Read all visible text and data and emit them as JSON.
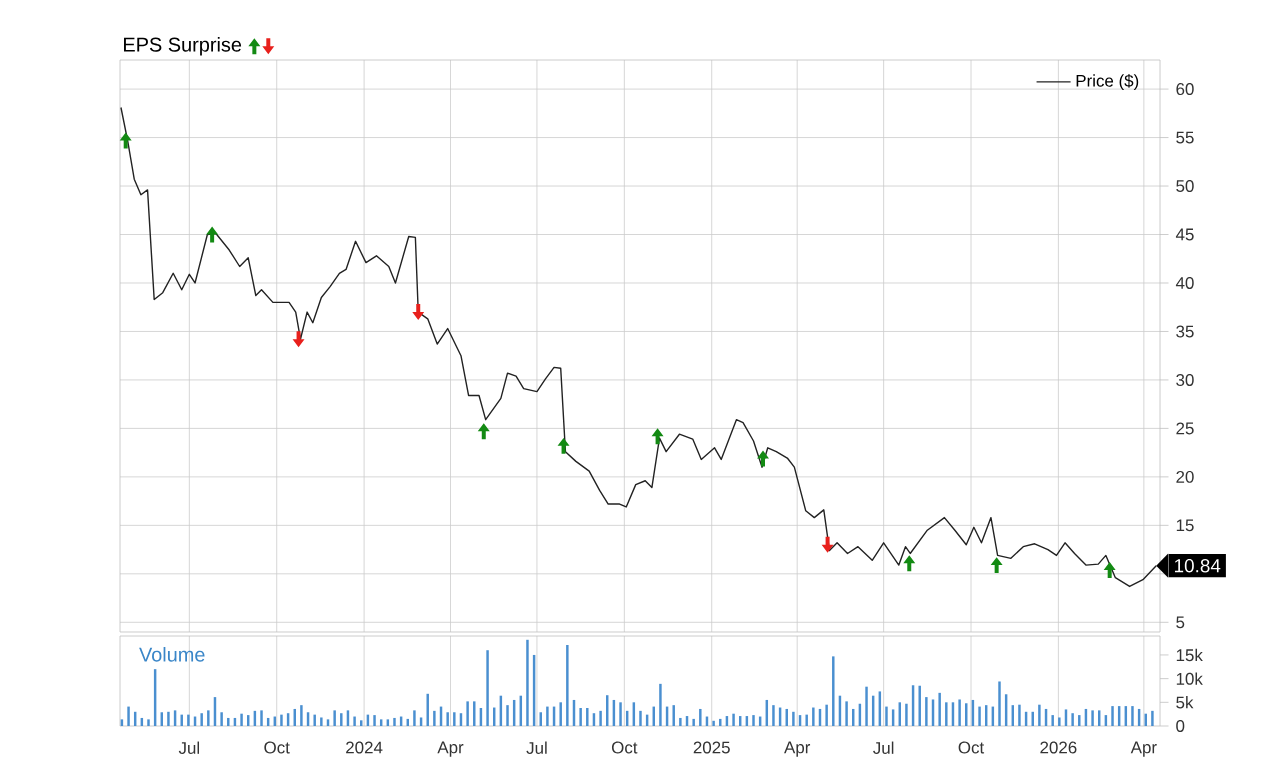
{
  "chart_data": [
    {
      "type": "line",
      "legend_title": "EPS Surprise",
      "legend": "top right",
      "grid": true,
      "tick_labels": "y",
      "xlim": [
        "2023-04-19",
        "2026-04-18"
      ],
      "ylim": [
        4,
        63
      ],
      "xticks": [
        {
          "value": "2023-07-01",
          "label": null
        },
        {
          "value": "2023-10-01",
          "label": null
        },
        {
          "value": "2024-01-01",
          "label": null
        },
        {
          "value": "2024-04-01",
          "label": null
        },
        {
          "value": "2024-07-01",
          "label": null
        },
        {
          "value": "2024-10-01",
          "label": null
        },
        {
          "value": "2025-01-01",
          "label": null
        },
        {
          "value": "2025-04-01",
          "label": null
        },
        {
          "value": "2025-07-01",
          "label": null
        },
        {
          "value": "2025-10-01",
          "label": null
        },
        {
          "value": "2026-01-01",
          "label": null
        },
        {
          "value": "2026-04-01",
          "label": null
        }
      ],
      "yticks": [
        5,
        {
          "value": 10,
          "label": null
        },
        15,
        20,
        25,
        30,
        35,
        40,
        45,
        50,
        55,
        60
      ],
      "x": [
        "2023-04-20",
        "2023-04-27",
        "2023-05-04",
        "2023-05-11",
        "2023-05-18",
        "2023-05-25",
        "2023-06-03",
        "2023-06-14",
        "2023-06-23",
        "2023-07-01",
        "2023-07-07",
        "2023-07-20",
        "2023-07-29",
        "2023-08-12",
        "2023-08-23",
        "2023-09-01",
        "2023-09-09",
        "2023-09-15",
        "2023-09-27",
        "2023-10-14",
        "2023-10-21",
        "2023-10-26",
        "2023-11-02",
        "2023-11-08",
        "2023-11-17",
        "2023-11-26",
        "2023-12-06",
        "2023-12-13",
        "2023-12-23",
        "2024-01-03",
        "2024-01-14",
        "2024-01-27",
        "2024-02-03",
        "2024-02-17",
        "2024-02-24",
        "2024-02-27",
        "2024-03-08",
        "2024-03-18",
        "2024-03-29",
        "2024-04-12",
        "2024-04-20",
        "2024-05-01",
        "2024-05-08",
        "2024-05-24",
        "2024-05-31",
        "2024-06-09",
        "2024-06-17",
        "2024-07-01",
        "2024-07-10",
        "2024-07-19",
        "2024-07-26",
        "2024-07-31",
        "2024-08-11",
        "2024-08-25",
        "2024-09-05",
        "2024-09-14",
        "2024-09-26",
        "2024-10-03",
        "2024-10-13",
        "2024-10-23",
        "2024-10-30",
        "2024-11-07",
        "2024-11-14",
        "2024-11-28",
        "2024-12-12",
        "2024-12-21",
        "2025-01-04",
        "2025-01-11",
        "2025-01-27",
        "2025-02-03",
        "2025-02-14",
        "2025-02-23",
        "2025-03-01",
        "2025-03-10",
        "2025-03-22",
        "2025-03-29",
        "2025-04-10",
        "2025-04-19",
        "2025-04-29",
        "2025-05-05",
        "2025-05-13",
        "2025-05-24",
        "2025-06-04",
        "2025-06-19",
        "2025-07-01",
        "2025-07-17",
        "2025-07-24",
        "2025-07-29",
        "2025-08-16",
        "2025-09-03",
        "2025-09-14",
        "2025-09-26",
        "2025-10-04",
        "2025-10-12",
        "2025-10-22",
        "2025-10-29",
        "2025-11-12",
        "2025-11-25",
        "2025-12-07",
        "2025-12-21",
        "2025-12-30",
        "2026-01-08",
        "2026-01-18",
        "2026-01-30",
        "2026-02-12",
        "2026-02-20",
        "2026-03-02",
        "2026-03-17",
        "2026-03-31",
        "2026-04-14"
      ],
      "series": [
        {
          "name": "Price ($)",
          "color": "#222222",
          "values": [
            58.1,
            54.7,
            50.7,
            49.1,
            49.6,
            38.3,
            39.0,
            41.0,
            39.3,
            40.9,
            40.0,
            45.0,
            45.1,
            43.4,
            41.7,
            42.6,
            38.7,
            39.3,
            38.0,
            38.0,
            37.0,
            34.2,
            37.0,
            35.9,
            38.5,
            39.6,
            41.0,
            41.4,
            44.3,
            42.1,
            42.8,
            41.7,
            40.0,
            44.8,
            44.7,
            37.0,
            36.3,
            33.7,
            35.3,
            32.5,
            28.4,
            28.4,
            25.9,
            28.1,
            30.7,
            30.4,
            29.1,
            28.8,
            30.1,
            31.3,
            31.2,
            22.6,
            21.6,
            20.6,
            18.6,
            17.2,
            17.2,
            16.9,
            19.2,
            19.6,
            18.9,
            24.0,
            22.6,
            24.4,
            23.9,
            21.8,
            23.0,
            21.8,
            25.9,
            25.6,
            23.7,
            21.0,
            23.0,
            22.6,
            21.9,
            21.0,
            16.5,
            15.8,
            16.6,
            12.4,
            13.2,
            12.1,
            12.8,
            11.4,
            13.2,
            10.9,
            12.8,
            12.1,
            14.5,
            15.8,
            14.5,
            13.0,
            14.8,
            13.2,
            15.8,
            11.9,
            11.6,
            12.8,
            13.1,
            12.5,
            11.9,
            13.2,
            12.1,
            10.9,
            11.0,
            11.9,
            9.6,
            8.7,
            9.4,
            10.84
          ]
        },
        {
          "type": "scatter",
          "marker": "triangle",
          "color": "#138a13",
          "x": [
            "2023-04-25",
            "2023-07-25",
            "2024-05-06",
            "2024-07-29",
            "2024-11-05",
            "2025-02-24",
            "2025-07-28",
            "2025-10-28",
            "2026-02-24"
          ],
          "values": [
            54.7,
            45.0,
            24.7,
            23.2,
            24.2,
            21.9,
            11.1,
            10.9,
            10.4
          ]
        },
        {
          "type": "scatter",
          "marker": "triangle",
          "color": "#e8201c",
          "x": [
            "2023-10-24",
            "2024-02-27",
            "2025-05-03"
          ],
          "values": [
            34.2,
            37.0,
            13.0
          ]
        }
      ],
      "annotations": [
        {
          "text": "10.84",
          "x": "2026-04-14",
          "y": 10.84
        }
      ]
    },
    {
      "type": "bar",
      "title": "Volume",
      "grid": "x",
      "color": "#4a8fd0",
      "xlim": [
        "2023-04-19",
        "2026-04-18"
      ],
      "ylim": [
        0,
        19000
      ],
      "xticks": [
        {
          "value": "2023-07-01",
          "label": "Jul"
        },
        {
          "value": "2023-10-01",
          "label": "Oct"
        },
        {
          "value": "2024-01-01",
          "label": "2024"
        },
        {
          "value": "2024-04-01",
          "label": "Apr"
        },
        {
          "value": "2024-07-01",
          "label": "Jul"
        },
        {
          "value": "2024-10-01",
          "label": "Oct"
        },
        {
          "value": "2025-01-01",
          "label": "2025"
        },
        {
          "value": "2025-04-01",
          "label": "Apr"
        },
        {
          "value": "2025-07-01",
          "label": "Jul"
        },
        {
          "value": "2025-10-01",
          "label": "Oct"
        },
        {
          "value": "2026-01-01",
          "label": "2026"
        },
        {
          "value": "2026-04-01",
          "label": "Apr"
        }
      ],
      "yticks": [
        0,
        {
          "value": 5000,
          "label": "5k"
        },
        {
          "value": 10000,
          "label": "10k"
        },
        {
          "value": 15000,
          "label": "15k"
        }
      ],
      "x": [
        "2023-04-21",
        "2023-04-28",
        "2023-05-05",
        "2023-05-12",
        "2023-05-19",
        "2023-05-26",
        "2023-06-02",
        "2023-06-09",
        "2023-06-16",
        "2023-06-23",
        "2023-06-30",
        "2023-07-07",
        "2023-07-14",
        "2023-07-21",
        "2023-07-28",
        "2023-08-04",
        "2023-08-11",
        "2023-08-18",
        "2023-08-25",
        "2023-09-01",
        "2023-09-08",
        "2023-09-15",
        "2023-09-22",
        "2023-09-29",
        "2023-10-06",
        "2023-10-13",
        "2023-10-20",
        "2023-10-27",
        "2023-11-03",
        "2023-11-10",
        "2023-11-17",
        "2023-11-24",
        "2023-12-01",
        "2023-12-08",
        "2023-12-15",
        "2023-12-22",
        "2023-12-29",
        "2024-01-05",
        "2024-01-12",
        "2024-01-19",
        "2024-01-26",
        "2024-02-02",
        "2024-02-09",
        "2024-02-16",
        "2024-02-23",
        "2024-03-01",
        "2024-03-08",
        "2024-03-15",
        "2024-03-22",
        "2024-03-29",
        "2024-04-05",
        "2024-04-12",
        "2024-04-19",
        "2024-04-26",
        "2024-05-03",
        "2024-05-10",
        "2024-05-17",
        "2024-05-24",
        "2024-05-31",
        "2024-06-07",
        "2024-06-14",
        "2024-06-21",
        "2024-06-28",
        "2024-07-05",
        "2024-07-12",
        "2024-07-19",
        "2024-07-26",
        "2024-08-02",
        "2024-08-09",
        "2024-08-16",
        "2024-08-23",
        "2024-08-30",
        "2024-09-06",
        "2024-09-13",
        "2024-09-20",
        "2024-09-27",
        "2024-10-04",
        "2024-10-11",
        "2024-10-18",
        "2024-10-25",
        "2024-11-01",
        "2024-11-08",
        "2024-11-15",
        "2024-11-22",
        "2024-11-29",
        "2024-12-06",
        "2024-12-13",
        "2024-12-20",
        "2024-12-27",
        "2025-01-03",
        "2025-01-10",
        "2025-01-17",
        "2025-01-24",
        "2025-01-31",
        "2025-02-07",
        "2025-02-14",
        "2025-02-21",
        "2025-02-28",
        "2025-03-07",
        "2025-03-14",
        "2025-03-21",
        "2025-03-28",
        "2025-04-04",
        "2025-04-11",
        "2025-04-18",
        "2025-04-25",
        "2025-05-02",
        "2025-05-09",
        "2025-05-16",
        "2025-05-23",
        "2025-05-30",
        "2025-06-06",
        "2025-06-13",
        "2025-06-20",
        "2025-06-27",
        "2025-07-04",
        "2025-07-11",
        "2025-07-18",
        "2025-07-25",
        "2025-08-01",
        "2025-08-08",
        "2025-08-15",
        "2025-08-22",
        "2025-08-29",
        "2025-09-05",
        "2025-09-12",
        "2025-09-19",
        "2025-09-26",
        "2025-10-03",
        "2025-10-10",
        "2025-10-17",
        "2025-10-24",
        "2025-10-31",
        "2025-11-07",
        "2025-11-14",
        "2025-11-21",
        "2025-11-28",
        "2025-12-05",
        "2025-12-12",
        "2025-12-19",
        "2025-12-26",
        "2026-01-02",
        "2026-01-09",
        "2026-01-16",
        "2026-01-23",
        "2026-01-30",
        "2026-02-06",
        "2026-02-13",
        "2026-02-20",
        "2026-02-27",
        "2026-03-06",
        "2026-03-13",
        "2026-03-20",
        "2026-03-27",
        "2026-04-03",
        "2026-04-10"
      ],
      "values": [
        1400,
        4100,
        3000,
        1700,
        1400,
        12000,
        2900,
        3000,
        3300,
        2400,
        2400,
        2000,
        2700,
        3300,
        6100,
        2900,
        1700,
        1700,
        2600,
        2300,
        3200,
        3300,
        1700,
        2000,
        2400,
        2700,
        3600,
        4400,
        2900,
        2400,
        1800,
        1400,
        3300,
        2700,
        3300,
        2000,
        1200,
        2400,
        2300,
        1400,
        1400,
        1700,
        2000,
        1500,
        3300,
        1800,
        6800,
        3200,
        4100,
        2900,
        2900,
        2700,
        5200,
        5200,
        3800,
        16000,
        3900,
        6400,
        4400,
        5500,
        6400,
        18200,
        15000,
        2900,
        4100,
        4100,
        5000,
        17100,
        5500,
        3800,
        3800,
        2700,
        3200,
        6500,
        5500,
        5000,
        3200,
        5000,
        3200,
        2400,
        4100,
        8900,
        4100,
        4400,
        1700,
        2100,
        1500,
        3600,
        2000,
        1100,
        1500,
        2100,
        2600,
        2100,
        2100,
        2300,
        2000,
        5500,
        4400,
        3900,
        3600,
        3000,
        2300,
        2400,
        3900,
        3600,
        4500,
        14700,
        6400,
        5200,
        3600,
        4700,
        8300,
        6400,
        7300,
        4100,
        3500,
        5000,
        4700,
        8600,
        8500,
        6100,
        5600,
        7000,
        5000,
        5000,
        5600,
        4800,
        5500,
        4100,
        4400,
        4100,
        9400,
        6700,
        4400,
        4500,
        3000,
        3000,
        4500,
        3600,
        2300,
        1800,
        3500,
        2700,
        2300,
        3600,
        3300,
        3300,
        2300,
        4200,
        4200,
        4200,
        4200,
        3600,
        2600,
        3200
      ]
    }
  ]
}
